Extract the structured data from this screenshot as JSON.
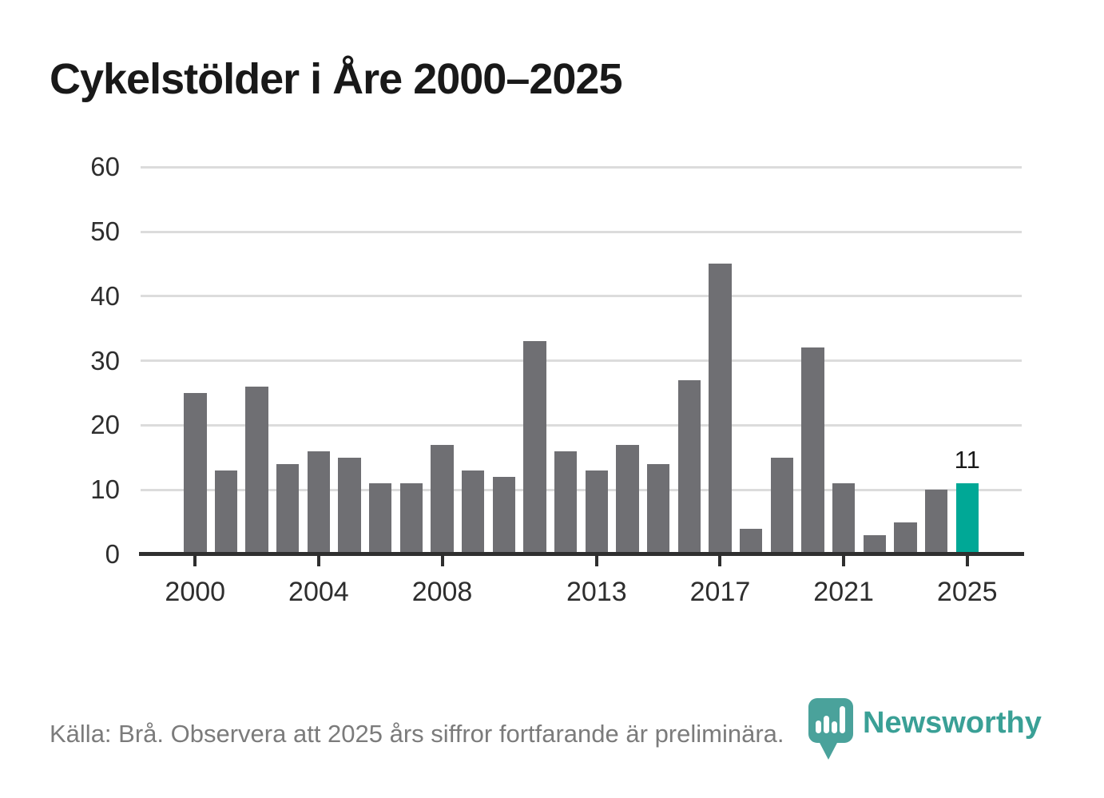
{
  "chart_data": {
    "type": "bar",
    "title": "Cykelstölder i Åre 2000–2025",
    "categories": [
      2000,
      2001,
      2002,
      2003,
      2004,
      2005,
      2006,
      2007,
      2008,
      2009,
      2010,
      2011,
      2012,
      2013,
      2014,
      2015,
      2016,
      2017,
      2018,
      2019,
      2020,
      2021,
      2022,
      2023,
      2024,
      2025
    ],
    "values": [
      25,
      13,
      26,
      14,
      16,
      15,
      11,
      11,
      17,
      13,
      12,
      33,
      16,
      13,
      17,
      14,
      27,
      45,
      4,
      15,
      32,
      11,
      3,
      5,
      10,
      11
    ],
    "highlight_index": 25,
    "highlight_value_label": "11",
    "yticks": [
      0,
      10,
      20,
      30,
      40,
      50,
      60
    ],
    "ylim": [
      0,
      60
    ],
    "xtick_labels": [
      "2000",
      "2004",
      "2008",
      "2013",
      "2017",
      "2021",
      "2025"
    ],
    "xtick_indices": [
      0,
      4,
      8,
      13,
      17,
      21,
      25
    ],
    "grid": "horizontal-only",
    "legend": "none",
    "bar_color": "#6f6f73",
    "highlight_color": "#00a896",
    "gridline_color": "#dcdcdc",
    "axis_color": "#2f2f2f",
    "tick_label_color": "#2e2e2e",
    "xlabel": "",
    "ylabel": ""
  },
  "footer": {
    "source_note": "Källa: Brå. Observera att 2025 års siffror fortfarande är preliminära.",
    "brand_name": "Newsworthy",
    "brand_text_color": "#3aa096",
    "brand_mark_color": "#4aa29b"
  }
}
